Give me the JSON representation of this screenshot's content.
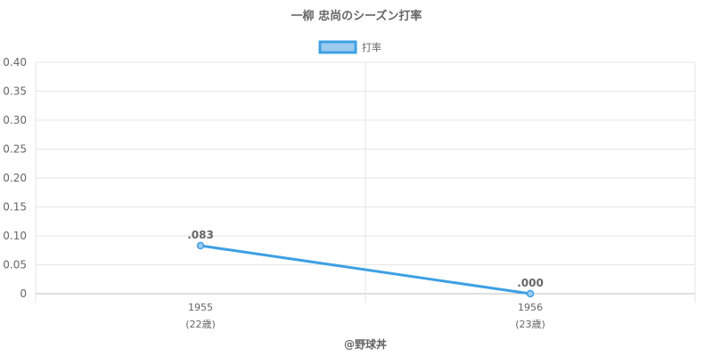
{
  "chart_data": {
    "type": "line",
    "title": "一柳 忠尚のシーズン打率",
    "categories": [
      "1955",
      "1956"
    ],
    "category_sublabels": [
      "(22歳)",
      "(23歳)"
    ],
    "series": [
      {
        "name": "打率",
        "values": [
          0.083,
          0.0
        ],
        "data_labels": [
          ".083",
          ".000"
        ],
        "color": "#3ea0e4"
      }
    ],
    "ylim": [
      0,
      0.4
    ],
    "yticks": [
      0,
      0.05,
      0.1,
      0.15,
      0.2,
      0.25,
      0.3,
      0.35,
      0.4
    ],
    "ytick_labels": [
      "0",
      "0.05",
      "0.10",
      "0.15",
      "0.20",
      "0.25",
      "0.30",
      "0.35",
      "0.40"
    ],
    "grid": true,
    "legend_position": "top-center"
  },
  "credit": "@野球丼",
  "colors": {
    "line": "#3ea0e4",
    "legend_fill": "#9ccbf0",
    "grid": "#e6e6e6",
    "axis": "#bfbfbf"
  }
}
